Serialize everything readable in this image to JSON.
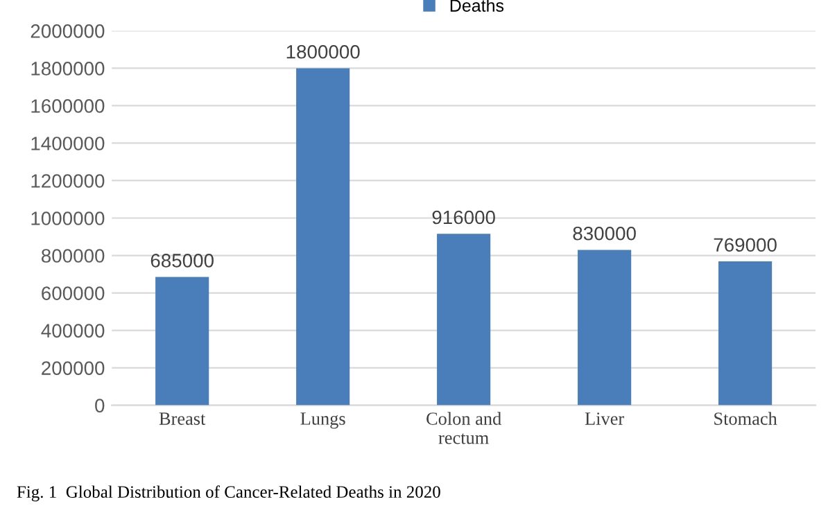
{
  "chart_data": {
    "type": "bar",
    "categories": [
      "Breast",
      "Lungs",
      "Colon and\nrectum",
      "Liver",
      "Stomach"
    ],
    "series": [
      {
        "name": "Deaths",
        "color": "#4a7ebb",
        "values": [
          685000,
          1800000,
          916000,
          830000,
          769000
        ]
      }
    ],
    "ylim": [
      0,
      2000000
    ],
    "yticks": [
      0,
      200000,
      400000,
      600000,
      800000,
      1000000,
      1200000,
      1400000,
      1600000,
      1800000,
      2000000
    ],
    "grid": "y",
    "legend": "top",
    "data_labels": true,
    "annotations": [
      "Fig. 1  Global Distribution of Cancer-Related Deaths in 2020"
    ]
  }
}
